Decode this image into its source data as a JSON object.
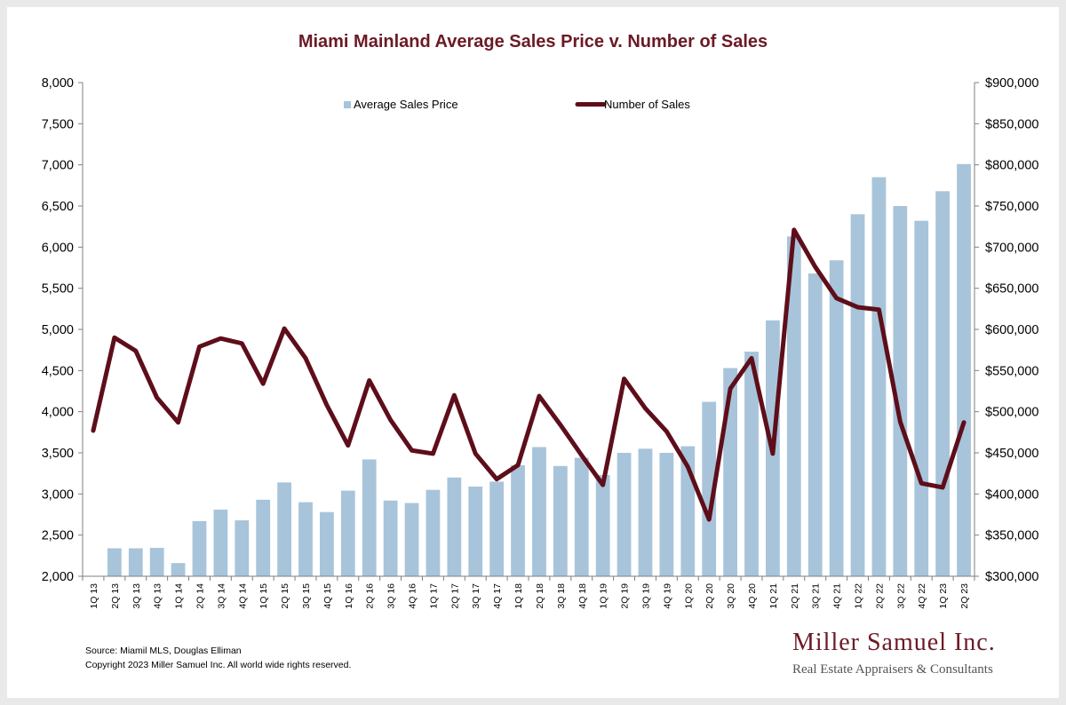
{
  "chart_data": {
    "type": "bar+line",
    "title": "Miami Mainland Average Sales Price v. Number of Sales",
    "categories": [
      "1Q 13",
      "2Q 13",
      "3Q 13",
      "4Q 13",
      "1Q 14",
      "2Q 14",
      "3Q 14",
      "4Q 14",
      "1Q 15",
      "2Q 15",
      "3Q 15",
      "4Q 15",
      "1Q 16",
      "2Q 16",
      "3Q 16",
      "4Q 16",
      "1Q 17",
      "2Q 17",
      "3Q 17",
      "4Q 17",
      "1Q 18",
      "2Q 18",
      "3Q 18",
      "4Q 18",
      "1Q 19",
      "2Q 19",
      "3Q 19",
      "4Q 19",
      "1Q 20",
      "2Q 20",
      "3Q 20",
      "4Q 20",
      "1Q 21",
      "2Q 21",
      "3Q 21",
      "4Q 21",
      "1Q 22",
      "2Q 22",
      "3Q 22",
      "4Q 22",
      "1Q 23",
      "2Q 23"
    ],
    "series": [
      {
        "name": "Average Sales Price",
        "type": "bar",
        "axis": "right",
        "color": "#a8c4da",
        "values": [
          null,
          334000,
          334000,
          334500,
          316000,
          367000,
          381000,
          368000,
          393000,
          414000,
          390000,
          378000,
          404000,
          442000,
          392000,
          389000,
          405000,
          420000,
          409000,
          415000,
          435000,
          457000,
          434000,
          444000,
          423000,
          450000,
          455000,
          450000,
          458000,
          512000,
          553000,
          573000,
          611000,
          713000,
          668000,
          684000,
          740000,
          785000,
          750000,
          732000,
          768000,
          801000
        ]
      },
      {
        "name": "Number of Sales",
        "type": "line",
        "axis": "left",
        "color": "#5e0e1a",
        "values": [
          3770,
          4900,
          4740,
          4170,
          3870,
          4790,
          4890,
          4830,
          4340,
          5010,
          4650,
          4080,
          3590,
          4380,
          3900,
          3530,
          3490,
          4200,
          3490,
          3180,
          3350,
          4190,
          3840,
          3470,
          3110,
          4400,
          4040,
          3760,
          3330,
          2690,
          4280,
          4650,
          3490,
          6210,
          5760,
          5380,
          5270,
          5240,
          3880,
          3130,
          3080,
          3870
        ]
      }
    ],
    "yleft": {
      "lim": [
        2000,
        8000
      ],
      "ticks": [
        "2,000",
        "2,500",
        "3,000",
        "3,500",
        "4,000",
        "4,500",
        "5,000",
        "5,500",
        "6,000",
        "6,500",
        "7,000",
        "7,500",
        "8,000"
      ]
    },
    "yright": {
      "lim": [
        300000,
        900000
      ],
      "ticks": [
        "$300,000",
        "$350,000",
        "$400,000",
        "$450,000",
        "$500,000",
        "$550,000",
        "$600,000",
        "$650,000",
        "$700,000",
        "$750,000",
        "$800,000",
        "$850,000",
        "$900,000"
      ]
    },
    "legend": {
      "placement": "top",
      "items": [
        "Average Sales Price",
        "Number of Sales"
      ]
    },
    "grid": false
  },
  "footer": {
    "source": "Source: Miamil MLS, Douglas Elliman",
    "copyright": "Copyright 2023 Miller Samuel Inc. All world wide rights reserved."
  },
  "brand": {
    "name": "Miller Samuel Inc.",
    "tagline": "Real Estate Appraisers & Consultants",
    "color": "#6b1a26"
  }
}
